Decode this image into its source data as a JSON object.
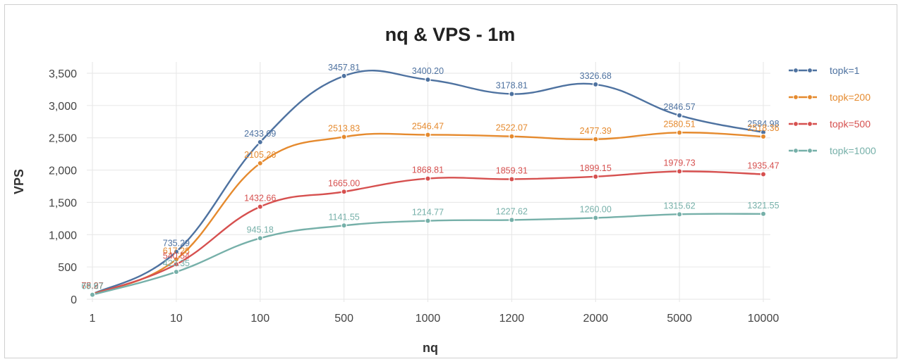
{
  "chart_data": {
    "type": "line",
    "title": "nq & VPS - 1m",
    "xlabel": "nq",
    "ylabel": "VPS",
    "categories": [
      "1",
      "10",
      "100",
      "500",
      "1000",
      "1200",
      "2000",
      "5000",
      "10000"
    ],
    "ylim": [
      0,
      3500
    ],
    "yticks": [
      0,
      500,
      1000,
      1500,
      2000,
      2500,
      3000,
      3500
    ],
    "ytick_labels": [
      "0",
      "500",
      "1,000",
      "1,500",
      "2,000",
      "2,500",
      "3,000",
      "3,500"
    ],
    "grid": true,
    "legend_position": "right",
    "series": [
      {
        "name": "topk=1",
        "color": "#4e72a0",
        "values": [
          78.97,
          735.29,
          2433.09,
          3457.81,
          3400.2,
          3178.81,
          3326.68,
          2846.57,
          2584.98
        ],
        "labels": [
          "78.97",
          "735.29",
          "2433.09",
          "3457.81",
          "3400.20",
          "3178.81",
          "3326.68",
          "2846.57",
          "2584.98"
        ]
      },
      {
        "name": "topk=200",
        "color": "#e58a2e",
        "values": [
          76.37,
          617.28,
          2105.26,
          2513.83,
          2546.47,
          2522.07,
          2477.39,
          2580.51,
          2518.36
        ],
        "labels": [
          "76.37",
          "617.28",
          "2105.26",
          "2513.83",
          "2546.47",
          "2522.07",
          "2477.39",
          "2580.51",
          "2518.36"
        ]
      },
      {
        "name": "topk=500",
        "color": "#d6504f",
        "values": [
          75.27,
          540.54,
          1432.66,
          1665.0,
          1868.81,
          1859.31,
          1899.15,
          1979.73,
          1935.47
        ],
        "labels": [
          "75.27",
          "540.54",
          "1432.66",
          "1665.00",
          "1868.81",
          "1859.31",
          "1899.15",
          "1979.73",
          "1935.47"
        ]
      },
      {
        "name": "topk=1000",
        "color": "#76b0a9",
        "values": [
          69.67,
          423.35,
          945.18,
          1141.55,
          1214.77,
          1227.62,
          1260.0,
          1315.62,
          1321.55
        ],
        "labels": [
          "69.67",
          "423.35",
          "945.18",
          "1141.55",
          "1214.77",
          "1227.62",
          "1260.00",
          "1315.62",
          "1321.55"
        ]
      }
    ]
  }
}
